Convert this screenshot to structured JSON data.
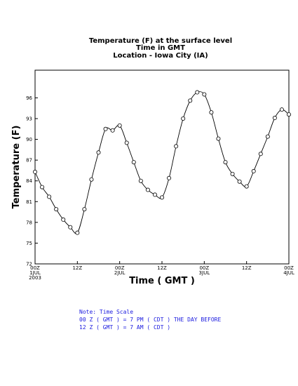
{
  "chart_data": {
    "type": "line",
    "title_lines": [
      "Temperature (F) at the surface level",
      "Time in GMT",
      "Location - Iowa City (IA)"
    ],
    "xlabel": "Time ( GMT )",
    "ylabel": "Temperature (F)",
    "ylim": [
      72,
      100
    ],
    "yticks": [
      72,
      75,
      78,
      81,
      84,
      87,
      90,
      93,
      96
    ],
    "ytick_labels": [
      "72",
      "75",
      "78",
      "81",
      "84",
      "87",
      "90",
      "93",
      "96"
    ],
    "xlim": [
      0,
      72
    ],
    "x_unit": "hours since 00Z 1 JUL 2003",
    "xticks": [
      {
        "x": 0,
        "lines": [
          "00Z",
          "1JUL",
          "2003"
        ]
      },
      {
        "x": 12,
        "lines": [
          "12Z"
        ]
      },
      {
        "x": 24,
        "lines": [
          "00Z",
          "2JUL"
        ]
      },
      {
        "x": 36,
        "lines": [
          "12Z"
        ]
      },
      {
        "x": 48,
        "lines": [
          "00Z",
          "3JUL"
        ]
      },
      {
        "x": 60,
        "lines": [
          "12Z"
        ]
      },
      {
        "x": 72,
        "lines": [
          "00Z",
          "4JUL"
        ]
      }
    ],
    "series": [
      {
        "marker": "open-circle",
        "x": [
          0,
          2,
          4,
          6,
          8,
          10,
          12,
          14,
          16,
          18,
          20,
          22,
          24,
          26,
          28,
          30,
          32,
          34,
          36,
          38,
          40,
          42,
          44,
          46,
          48,
          50,
          52,
          54,
          56,
          58,
          60,
          62,
          64,
          66,
          68,
          70,
          72
        ],
        "values": [
          85.3,
          83.1,
          81.7,
          79.9,
          78.4,
          77.3,
          76.5,
          79.9,
          84.2,
          88.1,
          91.5,
          91.3,
          92.0,
          89.5,
          86.7,
          84.0,
          82.7,
          82.0,
          81.6,
          84.4,
          89.0,
          93.0,
          95.6,
          96.8,
          96.5,
          93.9,
          90.1,
          86.7,
          85.0,
          83.9,
          83.2,
          85.4,
          87.9,
          90.4,
          93.1,
          94.3,
          93.6
        ]
      }
    ],
    "notes": [
      "Note: Time Scale",
      "00 Z ( GMT ) = 7 PM ( CDT ) THE DAY BEFORE",
      "12 Z ( GMT ) = 7 AM ( CDT )"
    ]
  }
}
